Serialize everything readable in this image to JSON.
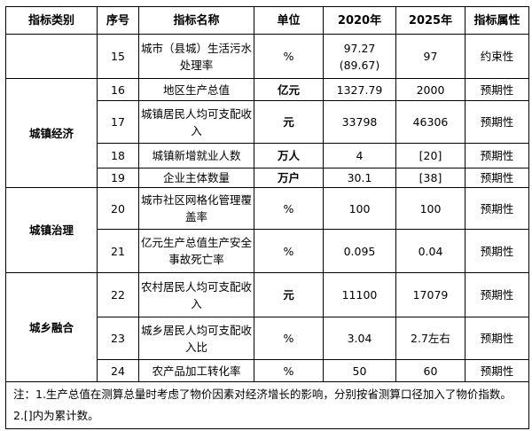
{
  "headers": [
    "指标类别",
    "序号",
    "指标名称",
    "单位",
    "2020年",
    "2025年",
    "指标属性"
  ],
  "groups": [
    "城镇经济",
    "城镇治理",
    "城乡融合"
  ],
  "rows": [
    {
      "no": "15",
      "name": "城市（县城）生活污水处理率",
      "unit": "%",
      "y2020": "97.27 (89.67)",
      "y2025": "97",
      "attr": "约束性"
    },
    {
      "no": "16",
      "name": "地区生产总值",
      "unit": "亿元",
      "y2020": "1327.79",
      "y2025": "2000",
      "attr": "预期性"
    },
    {
      "no": "17",
      "name": "城镇居民人均可支配收入",
      "unit": "元",
      "y2020": "33798",
      "y2025": "46306",
      "attr": "预期性"
    },
    {
      "no": "18",
      "name": "城镇新增就业人数",
      "unit": "万人",
      "y2020": "4",
      "y2025": "[20]",
      "attr": "预期性"
    },
    {
      "no": "19",
      "name": "企业主体数量",
      "unit": "万户",
      "y2020": "30.1",
      "y2025": "[38]",
      "attr": "预期性"
    },
    {
      "no": "20",
      "name": "城市社区网格化管理覆盖率",
      "unit": "%",
      "y2020": "100",
      "y2025": "100",
      "attr": "预期性"
    },
    {
      "no": "21",
      "name": "亿元生产总值生产安全事故死亡率",
      "unit": "%",
      "y2020": "0.095",
      "y2025": "0.04",
      "attr": "预期性"
    },
    {
      "no": "22",
      "name": "农村居民人均可支配收入",
      "unit": "元",
      "y2020": "11100",
      "y2025": "17079",
      "attr": "预期性"
    },
    {
      "no": "23",
      "name": "城乡居民人均可支配收入比",
      "unit": "%",
      "y2020": "3.04",
      "y2025": "2.7左右",
      "attr": "预期性"
    },
    {
      "no": "24",
      "name": "农产品加工转化率",
      "unit": "%",
      "y2020": "50",
      "y2025": "60",
      "attr": "预期性"
    }
  ],
  "note": "注：1.生产总值在测算总量时考虑了物价因素对经济增长的影响，分别按省测算口径加入了物价指数。2.[]内为累计数。"
}
